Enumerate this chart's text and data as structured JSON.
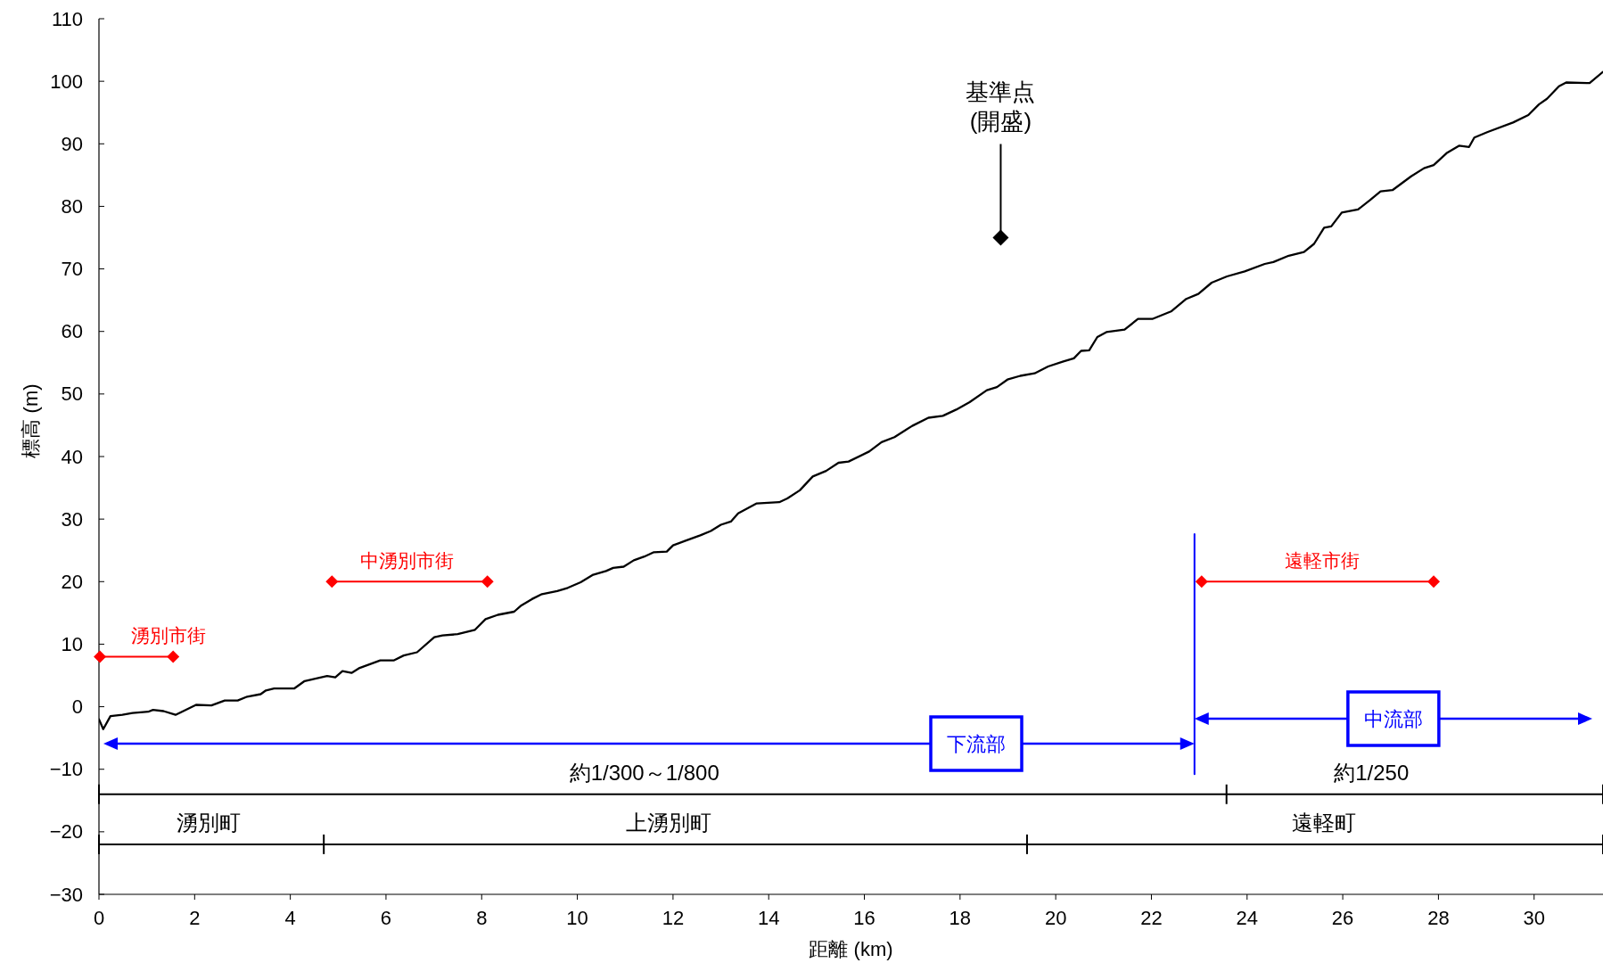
{
  "chart_data": {
    "type": "line",
    "xlabel": "距離 (km)",
    "ylabel": "標高 (m)",
    "xlim": [
      0,
      31.44
    ],
    "ylim": [
      -30,
      110
    ],
    "xticks": [
      0,
      2,
      4,
      6,
      8,
      10,
      12,
      14,
      16,
      18,
      20,
      22,
      24,
      26,
      28,
      30
    ],
    "yticks": [
      -30,
      -20,
      -10,
      0,
      10,
      20,
      30,
      40,
      50,
      60,
      70,
      80,
      90,
      100,
      110
    ],
    "grid": false,
    "series": [
      {
        "color": "#000000",
        "marker": "none",
        "x": [
          0,
          0.09,
          0.24,
          0.49,
          0.7,
          1.03,
          1.13,
          1.35,
          1.6,
          2.03,
          2.35,
          2.63,
          2.9,
          3.1,
          3.38,
          3.49,
          3.66,
          4.08,
          4.3,
          4.77,
          4.94,
          5.09,
          5.28,
          5.45,
          5.88,
          6.16,
          6.37,
          6.65,
          7.01,
          7.18,
          7.5,
          7.86,
          8.08,
          8.34,
          8.68,
          8.83,
          9.05,
          9.26,
          9.58,
          9.8,
          10.07,
          10.33,
          10.6,
          10.75,
          10.97,
          11.18,
          11.4,
          11.6,
          11.87,
          12,
          12.25,
          12.57,
          12.79,
          13,
          13.21,
          13.36,
          13.75,
          14.22,
          14.39,
          14.65,
          14.92,
          15.2,
          15.46,
          15.67,
          16.1,
          16.36,
          16.63,
          17,
          17.34,
          17.64,
          17.92,
          18.2,
          18.56,
          18.77,
          18.99,
          19.26,
          19.56,
          19.84,
          20.16,
          20.38,
          20.53,
          20.7,
          20.87,
          21.06,
          21.44,
          21.72,
          22.02,
          22.41,
          22.73,
          22.98,
          23.26,
          23.58,
          23.95,
          24.37,
          24.55,
          24.87,
          25.19,
          25.4,
          25.61,
          25.76,
          25.98,
          26.32,
          26.57,
          26.79,
          27.04,
          27.43,
          27.7,
          27.9,
          28.17,
          28.43,
          28.64,
          28.75,
          29.03,
          29.56,
          29.88,
          30.1,
          30.27,
          30.52,
          30.67,
          31.16,
          31.44
        ],
        "values": [
          -2,
          -3.6,
          -1.5,
          -1.3,
          -1,
          -0.8,
          -0.5,
          -0.7,
          -1.3,
          0.3,
          0.2,
          1,
          1,
          1.6,
          2,
          2.6,
          2.9,
          2.9,
          4.1,
          4.9,
          4.7,
          5.7,
          5.4,
          6.2,
          7.4,
          7.4,
          8.2,
          8.7,
          11.1,
          11.4,
          11.6,
          12.3,
          14,
          14.7,
          15.2,
          16.2,
          17.2,
          18,
          18.5,
          19,
          19.9,
          21.1,
          21.7,
          22.2,
          22.4,
          23.4,
          24,
          24.7,
          24.8,
          25.8,
          26.5,
          27.4,
          28.1,
          29.1,
          29.6,
          30.9,
          32.5,
          32.7,
          33.3,
          34.6,
          36.8,
          37.7,
          39,
          39.2,
          40.8,
          42.3,
          43.1,
          44.9,
          46.2,
          46.5,
          47.5,
          48.7,
          50.6,
          51.1,
          52.3,
          52.9,
          53.3,
          54.4,
          55.2,
          55.7,
          56.9,
          57,
          59.1,
          59.9,
          60.3,
          62,
          62,
          63.2,
          65.2,
          66,
          67.8,
          68.8,
          69.6,
          70.8,
          71.1,
          72.1,
          72.7,
          74,
          76.6,
          76.8,
          79,
          79.5,
          81,
          82.4,
          82.6,
          84.8,
          86.1,
          86.6,
          88.5,
          89.7,
          89.5,
          91,
          91.9,
          93.4,
          94.6,
          96.3,
          97.2,
          99.2,
          99.8,
          99.7,
          101.5
        ]
      },
      {
        "color": "#ff0000",
        "marker": "diamond",
        "x": [
          0.02,
          1.55
        ],
        "values": [
          8,
          8
        ]
      },
      {
        "color": "#ff0000",
        "marker": "diamond",
        "x": [
          4.87,
          8.12
        ],
        "values": [
          20,
          20
        ]
      },
      {
        "color": "#ff0000",
        "marker": "diamond",
        "x": [
          23.05,
          27.9
        ],
        "values": [
          20,
          20
        ]
      },
      {
        "color": "#000000",
        "marker": "none",
        "x": [
          0,
          23.57,
          31.44
        ],
        "values": [
          -14,
          -14,
          -14
        ]
      },
      {
        "color": "#000000",
        "marker": "none",
        "x": [
          0,
          4.7,
          19.4,
          31.44
        ],
        "values": [
          -22,
          -22,
          -22,
          -22
        ]
      },
      {
        "color": "#0000ff",
        "marker": "none",
        "x": [
          22.9,
          22.9
        ],
        "values": [
          -10.8,
          27.6
        ]
      },
      {
        "type": "scatter",
        "color": "#000000",
        "marker": "diamond",
        "x": [
          18.85
        ],
        "values": [
          75
        ]
      }
    ],
    "annotations": [
      "下流部",
      "中流部",
      {
        "text": "基準点\n(開盛)",
        "x": 18.85,
        "y": 75
      },
      {
        "text": "湧別市街",
        "x": 1.45,
        "y": 8
      },
      {
        "text": "中湧別市街",
        "x": 6.44,
        "y": 20
      },
      {
        "text": "遠軽市街",
        "x": 25.57,
        "y": 20
      },
      {
        "text": "約1/300～1/800",
        "x": 11.4,
        "y": -14
      },
      {
        "text": "約1/250",
        "x": 26.6,
        "y": -14
      },
      {
        "text": "湧別町",
        "x": 2.3,
        "y": -22
      },
      {
        "text": "上湧別町",
        "x": 11.9,
        "y": -22
      },
      {
        "text": "遠軽町",
        "x": 25.6,
        "y": -22
      }
    ]
  }
}
